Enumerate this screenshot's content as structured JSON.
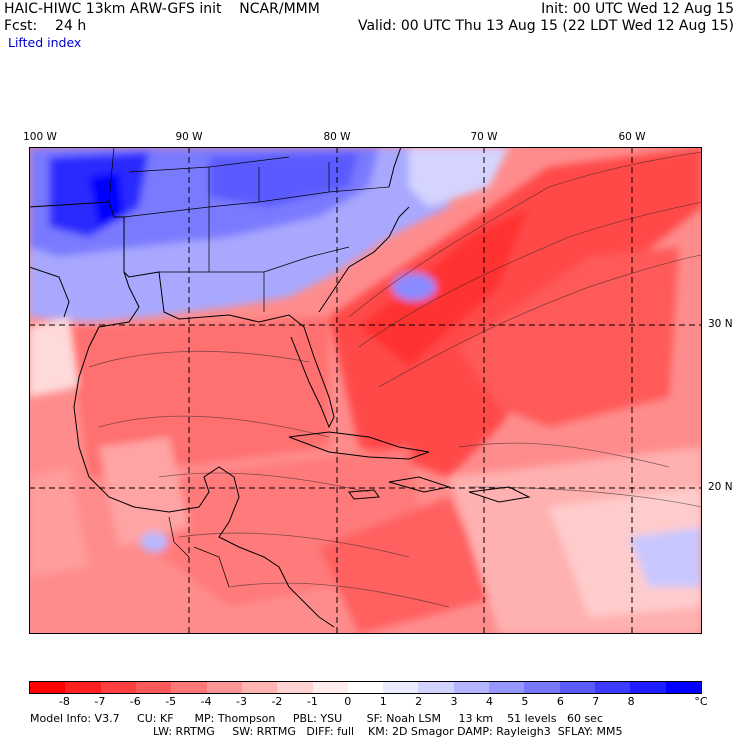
{
  "header": {
    "title": "HAIC-HIWC 13km ARW-GFS init    NCAR/MMM",
    "forecast": "Fcst:    24 h",
    "field": "Lifted index",
    "init": "Init: 00 UTC Wed 12 Aug 15",
    "valid": "Valid: 00 UTC Thu 13 Aug 15 (22 LDT Wed 12 Aug 15)"
  },
  "axes": {
    "lon_labels": [
      "100 W",
      "90 W",
      "80 W",
      "70 W",
      "60 W"
    ],
    "lat_labels": [
      "30 N",
      "20 N"
    ]
  },
  "colorbar": {
    "labels": [
      "-8",
      "-7",
      "-6",
      "-5",
      "-4",
      "-3",
      "-2",
      "-1",
      "0",
      "1",
      "2",
      "3",
      "4",
      "5",
      "6",
      "7",
      "8"
    ],
    "unit": "°C",
    "colors": [
      "#ff0000",
      "#ff2020",
      "#ff4040",
      "#ff5a5a",
      "#ff7878",
      "#ff9696",
      "#ffb4b4",
      "#ffd2d2",
      "#ffecec",
      "#ffffff",
      "#ececff",
      "#d2d2ff",
      "#b4b4ff",
      "#9696ff",
      "#7878ff",
      "#5a5aff",
      "#3c3cff",
      "#1e1eff",
      "#0000ff"
    ]
  },
  "footer": {
    "line1": "Model Info: V3.7     CU: KF      MP: Thompson     PBL: YSU       SF: Noah LSM     13 km    51 levels   60 sec",
    "line2": "LW: RRTMG     SW: RRTMG   DIFF: full    KM: 2D Smagor DAMP: Rayleigh3  SFLAY: MM5"
  },
  "map": {
    "regions": [
      {
        "name": "continental-us-stable-region",
        "li_approx": "2 to 8"
      },
      {
        "name": "gulf-and-caribbean-unstable-region",
        "li_approx": "-8 to -1"
      }
    ]
  }
}
